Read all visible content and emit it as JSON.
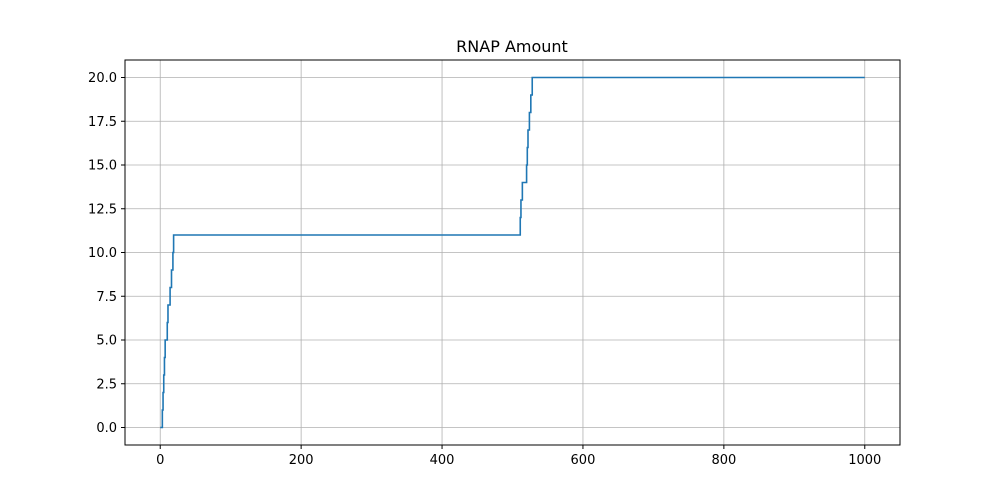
{
  "chart_data": {
    "type": "line",
    "title": "RNAP Amount",
    "xlabel": "",
    "ylabel": "",
    "xlim": [
      -50,
      1050
    ],
    "ylim": [
      -1,
      21
    ],
    "xticks": [
      0,
      200,
      400,
      600,
      800,
      1000
    ],
    "xtick_labels": [
      "0",
      "200",
      "400",
      "600",
      "800",
      "1000"
    ],
    "yticks": [
      0,
      2.5,
      5,
      7.5,
      10,
      12.5,
      15,
      17.5,
      20
    ],
    "ytick_labels": [
      "0.0",
      "2.5",
      "5.0",
      "7.5",
      "10.0",
      "12.5",
      "15.0",
      "17.5",
      "20.0"
    ],
    "grid": true,
    "line_color": "#1f77b4",
    "series": [
      {
        "x": [
          0,
          3,
          3,
          4,
          4,
          5,
          5,
          6,
          6,
          7,
          7,
          10,
          10,
          11,
          11,
          14,
          14,
          16,
          16,
          18,
          18,
          19,
          19,
          20,
          20,
          511,
          511,
          512,
          512,
          514,
          514,
          515,
          515,
          520,
          520,
          521,
          521,
          522,
          522,
          524,
          524,
          526,
          526,
          528,
          528,
          1000
        ],
        "y": [
          0,
          0,
          1,
          1,
          2,
          2,
          3,
          3,
          4,
          4,
          5,
          5,
          6,
          6,
          7,
          7,
          8,
          8,
          9,
          9,
          10,
          10,
          11,
          11,
          11,
          11,
          12,
          12,
          13,
          13,
          14,
          14,
          14,
          14,
          15,
          15,
          16,
          16,
          17,
          17,
          18,
          18,
          19,
          19,
          20,
          20
        ]
      }
    ]
  }
}
